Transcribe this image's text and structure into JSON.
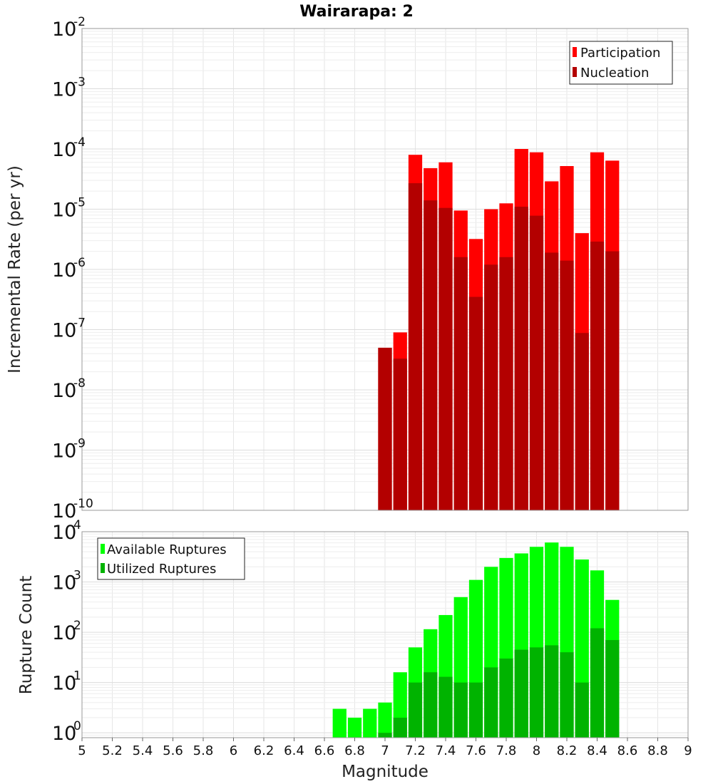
{
  "chart_data": [
    {
      "type": "bar",
      "title": "Wairarapa: 2",
      "xlabel": "Magnitude",
      "ylabel": "Incremental Rate (per yr)",
      "yscale": "log",
      "ylim": [
        1e-10,
        0.01
      ],
      "x": [
        7.0,
        7.1,
        7.2,
        7.3,
        7.4,
        7.5,
        7.6,
        7.7,
        7.8,
        7.9,
        8.0,
        8.1,
        8.2,
        8.3,
        8.4,
        8.5
      ],
      "series": [
        {
          "name": "Participation",
          "color": "#ff0000",
          "values": [
            5e-08,
            9e-08,
            8e-05,
            4.8e-05,
            6e-05,
            9.5e-06,
            3.2e-06,
            1e-05,
            1.25e-05,
            0.0001,
            8.8e-05,
            2.9e-05,
            5.2e-05,
            4e-06,
            8.8e-05,
            6.4e-05
          ]
        },
        {
          "name": "Nucleation",
          "color": "#b30000",
          "values": [
            5e-08,
            3.3e-08,
            2.7e-05,
            1.4e-05,
            1.05e-05,
            1.6e-06,
            3.5e-07,
            1.2e-06,
            1.6e-06,
            1.1e-05,
            7.8e-06,
            1.9e-06,
            1.4e-06,
            8.8e-08,
            2.9e-06,
            2e-06
          ]
        }
      ],
      "legend_position": "top-right"
    },
    {
      "type": "bar",
      "xlabel": "Magnitude",
      "ylabel": "Rupture Count",
      "yscale": "log",
      "ylim": [
        0.8,
        10000
      ],
      "x": [
        6.7,
        6.8,
        6.9,
        7.0,
        7.1,
        7.2,
        7.3,
        7.4,
        7.5,
        7.6,
        7.7,
        7.8,
        7.9,
        8.0,
        8.1,
        8.2,
        8.3,
        8.4,
        8.5
      ],
      "series": [
        {
          "name": "Available Ruptures",
          "color": "#00ff00",
          "values": [
            3,
            2,
            3,
            4,
            16,
            50,
            115,
            220,
            500,
            1100,
            2000,
            3000,
            3700,
            5000,
            6100,
            5000,
            2800,
            1700,
            440
          ]
        },
        {
          "name": "Utilized Ruptures",
          "color": "#00b300",
          "values": [
            0,
            0,
            0,
            1,
            2,
            10,
            16,
            13,
            10,
            10,
            20,
            30,
            45,
            50,
            55,
            40,
            10,
            120,
            70
          ]
        }
      ],
      "legend_position": "top-left"
    }
  ],
  "x_ticks": [
    "5",
    "5.2",
    "5.4",
    "5.6",
    "5.8",
    "6",
    "6.2",
    "6.4",
    "6.6",
    "6.8",
    "7",
    "7.2",
    "7.4",
    "7.6",
    "7.8",
    "8",
    "8.2",
    "8.4",
    "8.6",
    "8.8",
    "9"
  ],
  "x_range": [
    5,
    9
  ],
  "top_y_ticks": [
    {
      "base": "10",
      "exp": "-2"
    },
    {
      "base": "10",
      "exp": "-3"
    },
    {
      "base": "10",
      "exp": "-4"
    },
    {
      "base": "10",
      "exp": "-5"
    },
    {
      "base": "10",
      "exp": "-6"
    },
    {
      "base": "10",
      "exp": "-7"
    },
    {
      "base": "10",
      "exp": "-8"
    },
    {
      "base": "10",
      "exp": "-9"
    },
    {
      "base": "10",
      "exp": "-10"
    }
  ],
  "bottom_y_ticks": [
    {
      "base": "10",
      "exp": "4"
    },
    {
      "base": "10",
      "exp": "3"
    },
    {
      "base": "10",
      "exp": "2"
    },
    {
      "base": "10",
      "exp": "1"
    },
    {
      "base": "10",
      "exp": "0"
    }
  ]
}
